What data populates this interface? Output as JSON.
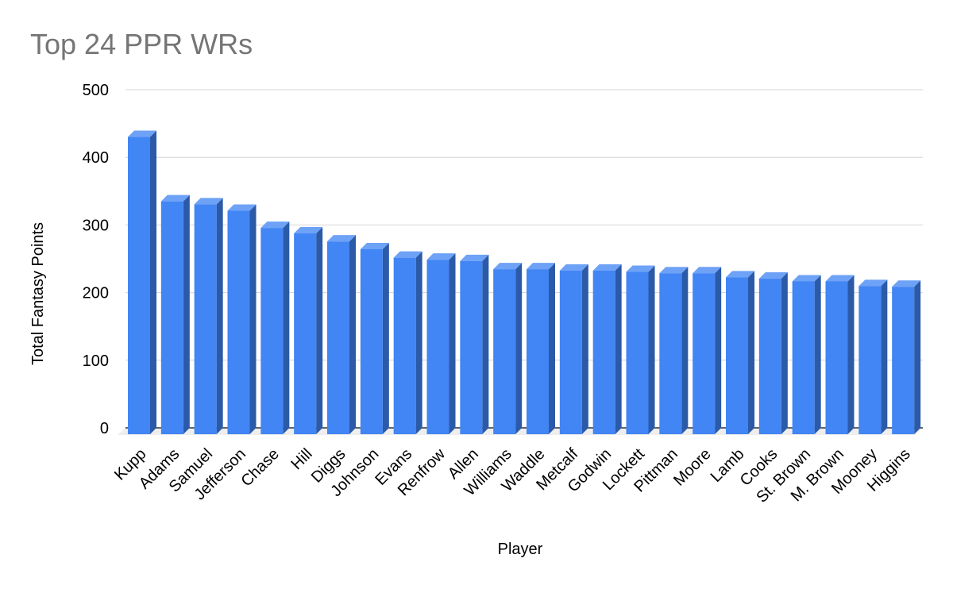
{
  "chart_data": {
    "type": "bar",
    "title": "Top 24 PPR WRs",
    "xlabel": "Player",
    "ylabel": "Total Fantasy Points",
    "categories": [
      "Kupp",
      "Adams",
      "Samuel",
      "Jefferson",
      "Chase",
      "Hill",
      "Diggs",
      "Johnson",
      "Evans",
      "Renfrow",
      "Allen",
      "Williams",
      "Waddle",
      "Metcalf",
      "Godwin",
      "Lockett",
      "Pittman",
      "Moore",
      "Lamb",
      "Cooks",
      "St. Brown",
      "M. Brown",
      "Mooney",
      "Higgins"
    ],
    "values": [
      439.5,
      344.3,
      339.9,
      330.4,
      305.0,
      296.9,
      285.0,
      273.5,
      261.0,
      258.0,
      256.0,
      244.0,
      244.0,
      242.0,
      242.0,
      240.0,
      238.0,
      238.0,
      232.0,
      230.0,
      226.0,
      226.0,
      219.0,
      218.0
    ],
    "ylim": [
      0,
      500
    ],
    "yticks": [
      0,
      100,
      200,
      300,
      400,
      500
    ],
    "grid": true,
    "legend": "none",
    "colors": {
      "bar_front": "#4285f4",
      "bar_side": "#2b5aa8",
      "bar_top": "#6ea2f7",
      "floor": "#eeeeee",
      "title": "#757575"
    }
  }
}
